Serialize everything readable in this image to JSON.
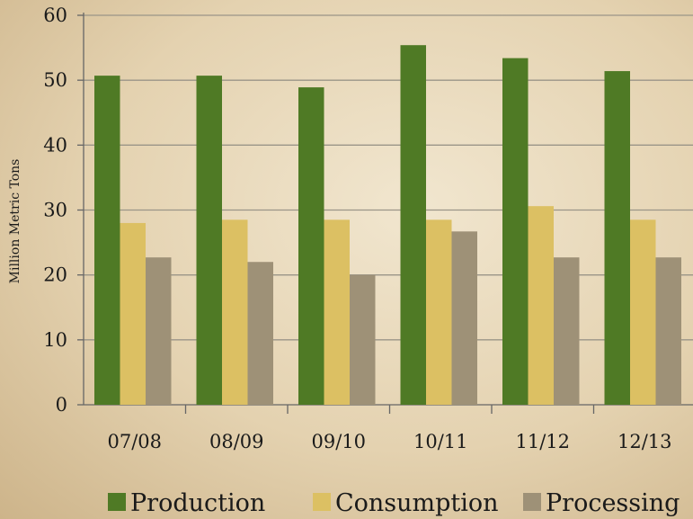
{
  "chart_data": {
    "type": "bar",
    "title": "",
    "xlabel": "",
    "ylabel": "Million Metric Tons",
    "ylim": [
      0,
      60
    ],
    "yticks": [
      0,
      10,
      20,
      30,
      40,
      50,
      60
    ],
    "grid": true,
    "legend_position": "bottom",
    "categories": [
      "07/08",
      "08/09",
      "09/10",
      "10/11",
      "11/12",
      "12/13"
    ],
    "series": [
      {
        "name": "Production",
        "color": "#4f7a25",
        "values": [
          50.7,
          50.7,
          48.9,
          55.4,
          53.4,
          51.4
        ]
      },
      {
        "name": "Consumption",
        "color": "#dcc063",
        "values": [
          28.0,
          28.5,
          28.5,
          28.5,
          30.6,
          28.5
        ]
      },
      {
        "name": "Processing",
        "color": "#9e9177",
        "values": [
          22.7,
          22.0,
          20.0,
          26.7,
          22.7,
          22.7
        ]
      }
    ]
  }
}
